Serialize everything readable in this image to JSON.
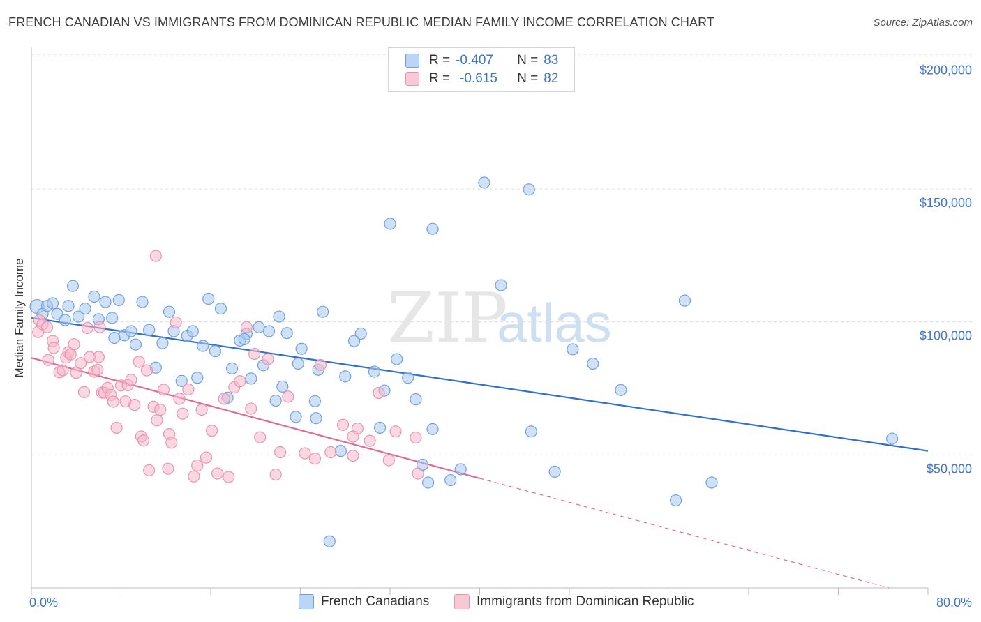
{
  "title": "FRENCH CANADIAN VS IMMIGRANTS FROM DOMINICAN REPUBLIC MEDIAN FAMILY INCOME CORRELATION CHART",
  "source": "Source: ZipAtlas.com",
  "watermark": {
    "zip": "ZIP",
    "atlas": "atlas"
  },
  "legend": {
    "rows": [
      {
        "r_label": "R =",
        "r_value": "-0.407",
        "n_label": "N =",
        "n_value": "83",
        "color": "#aac8f0"
      },
      {
        "r_label": "R =",
        "r_value": "-0.615",
        "n_label": "N =",
        "n_value": "82",
        "color": "#f5b8cb"
      }
    ]
  },
  "bottom_legend": {
    "series1": "French Canadians",
    "series2": "Immigrants from Dominican Republic"
  },
  "chart_data": {
    "type": "scatter",
    "title": "FRENCH CANADIAN VS IMMIGRANTS FROM DOMINICAN REPUBLIC MEDIAN FAMILY INCOME CORRELATION CHART",
    "ylabel": "Median Family Income",
    "xlabel": "",
    "x_tick_labels": [
      "0.0%",
      "80.0%"
    ],
    "y_tick_labels": [
      "$50,000",
      "$100,000",
      "$150,000",
      "$200,000"
    ],
    "y_ticks": [
      50000,
      100000,
      150000,
      200000
    ],
    "xlim": [
      0,
      80
    ],
    "ylim": [
      0,
      205000
    ],
    "grid": true,
    "series": [
      {
        "name": "French Canadians",
        "color": "#6fa0e0",
        "fill": "#aac8f0",
        "line_color": "#2f6fd0",
        "trend": {
          "x0": 0,
          "y0": 101500,
          "x1": 80,
          "y1": 51500
        },
        "points": [
          [
            0.5,
            105800
          ],
          [
            1.0,
            103000
          ],
          [
            1.4,
            106000
          ],
          [
            1.9,
            107000
          ],
          [
            2.3,
            103000
          ],
          [
            3.3,
            106000
          ],
          [
            3.7,
            113500
          ],
          [
            4.2,
            102000
          ],
          [
            4.8,
            105000
          ],
          [
            5.6,
            109500
          ],
          [
            6.0,
            101000
          ],
          [
            6.6,
            107500
          ],
          [
            7.2,
            101500
          ],
          [
            7.8,
            108200
          ],
          [
            8.3,
            95000
          ],
          [
            8.9,
            96500
          ],
          [
            9.3,
            91500
          ],
          [
            9.9,
            107500
          ],
          [
            10.5,
            97000
          ],
          [
            11.1,
            82800
          ],
          [
            11.7,
            92000
          ],
          [
            12.3,
            103800
          ],
          [
            12.7,
            96500
          ],
          [
            13.4,
            77800
          ],
          [
            13.9,
            94800
          ],
          [
            14.4,
            96500
          ],
          [
            14.8,
            79000
          ],
          [
            15.3,
            91000
          ],
          [
            15.8,
            108700
          ],
          [
            16.4,
            89000
          ],
          [
            16.9,
            105000
          ],
          [
            17.5,
            71500
          ],
          [
            17.9,
            82500
          ],
          [
            18.6,
            93000
          ],
          [
            19.2,
            95500
          ],
          [
            19.6,
            78700
          ],
          [
            20.3,
            98000
          ],
          [
            20.7,
            83700
          ],
          [
            21.2,
            96500
          ],
          [
            21.8,
            70400
          ],
          [
            22.1,
            102000
          ],
          [
            22.4,
            75700
          ],
          [
            22.8,
            95800
          ],
          [
            23.6,
            64300
          ],
          [
            23.8,
            84300
          ],
          [
            24.1,
            89900
          ],
          [
            25.3,
            70200
          ],
          [
            25.4,
            63800
          ],
          [
            26.0,
            103800
          ],
          [
            26.6,
            17500
          ],
          [
            27.6,
            51500
          ],
          [
            28.0,
            79500
          ],
          [
            28.8,
            92800
          ],
          [
            29.4,
            95600
          ],
          [
            30.6,
            81300
          ],
          [
            31.1,
            60200
          ],
          [
            31.5,
            74200
          ],
          [
            32.0,
            136900
          ],
          [
            32.6,
            86000
          ],
          [
            33.6,
            79000
          ],
          [
            34.3,
            70900
          ],
          [
            34.9,
            46300
          ],
          [
            35.4,
            39600
          ],
          [
            35.8,
            135000
          ],
          [
            35.8,
            59700
          ],
          [
            37.4,
            40500
          ],
          [
            38.3,
            44600
          ],
          [
            40.4,
            152400
          ],
          [
            41.9,
            113800
          ],
          [
            44.4,
            149800
          ],
          [
            44.6,
            58800
          ],
          [
            46.7,
            43700
          ],
          [
            48.3,
            89700
          ],
          [
            50.1,
            84300
          ],
          [
            52.6,
            74400
          ],
          [
            57.5,
            32900
          ],
          [
            58.3,
            108000
          ],
          [
            60.7,
            39600
          ],
          [
            76.8,
            56100
          ],
          [
            3.0,
            100700
          ],
          [
            7.4,
            94000
          ],
          [
            19.0,
            93500
          ],
          [
            25.6,
            82000
          ]
        ]
      },
      {
        "name": "Immigrants from Dominican Republic",
        "color": "#e993b0",
        "fill": "#f5b8cb",
        "line_color": "#e06a94",
        "trend": {
          "x0": 0,
          "y0": 86500,
          "x1": 40,
          "y1": 41200
        },
        "trend_dashed_to": {
          "x": 76.5,
          "y": 0
        },
        "points": [
          [
            0.6,
            96200
          ],
          [
            0.7,
            100600
          ],
          [
            1.0,
            99100
          ],
          [
            1.4,
            98000
          ],
          [
            1.5,
            85700
          ],
          [
            1.9,
            92800
          ],
          [
            2.0,
            90200
          ],
          [
            2.5,
            81100
          ],
          [
            2.8,
            81800
          ],
          [
            3.1,
            86600
          ],
          [
            3.3,
            88600
          ],
          [
            3.5,
            87800
          ],
          [
            3.8,
            91600
          ],
          [
            4.0,
            80900
          ],
          [
            4.4,
            84500
          ],
          [
            4.7,
            73600
          ],
          [
            5.0,
            97700
          ],
          [
            5.2,
            86800
          ],
          [
            5.6,
            81300
          ],
          [
            5.9,
            82000
          ],
          [
            6.0,
            86800
          ],
          [
            6.1,
            98000
          ],
          [
            6.3,
            73400
          ],
          [
            6.5,
            73400
          ],
          [
            6.8,
            75200
          ],
          [
            7.1,
            72500
          ],
          [
            7.3,
            70000
          ],
          [
            7.6,
            60200
          ],
          [
            8.0,
            76100
          ],
          [
            8.4,
            70100
          ],
          [
            8.6,
            76200
          ],
          [
            8.9,
            78200
          ],
          [
            9.2,
            68800
          ],
          [
            9.6,
            85000
          ],
          [
            9.8,
            56900
          ],
          [
            10.0,
            55400
          ],
          [
            10.3,
            81800
          ],
          [
            10.5,
            44200
          ],
          [
            10.9,
            68100
          ],
          [
            11.2,
            63000
          ],
          [
            11.5,
            67000
          ],
          [
            11.8,
            74500
          ],
          [
            12.2,
            44800
          ],
          [
            12.3,
            57800
          ],
          [
            12.5,
            54600
          ],
          [
            12.9,
            99800
          ],
          [
            13.2,
            71100
          ],
          [
            13.5,
            65500
          ],
          [
            14.0,
            74600
          ],
          [
            14.5,
            41900
          ],
          [
            14.8,
            46000
          ],
          [
            15.2,
            67000
          ],
          [
            15.6,
            49000
          ],
          [
            16.1,
            59100
          ],
          [
            16.6,
            43000
          ],
          [
            17.2,
            71100
          ],
          [
            17.6,
            41700
          ],
          [
            18.1,
            75400
          ],
          [
            18.6,
            77700
          ],
          [
            19.2,
            98000
          ],
          [
            19.6,
            67400
          ],
          [
            19.9,
            88000
          ],
          [
            20.4,
            56600
          ],
          [
            21.1,
            86000
          ],
          [
            21.8,
            42600
          ],
          [
            22.2,
            51000
          ],
          [
            22.9,
            71900
          ],
          [
            24.4,
            50600
          ],
          [
            25.3,
            48600
          ],
          [
            25.8,
            83800
          ],
          [
            26.7,
            51000
          ],
          [
            27.8,
            61300
          ],
          [
            28.7,
            49700
          ],
          [
            29.1,
            59900
          ],
          [
            30.2,
            55300
          ],
          [
            31.0,
            73300
          ],
          [
            31.9,
            48000
          ],
          [
            32.5,
            58800
          ],
          [
            34.5,
            43000
          ],
          [
            34.3,
            56500
          ],
          [
            11.1,
            124800
          ],
          [
            28.7,
            56900
          ]
        ]
      }
    ]
  }
}
